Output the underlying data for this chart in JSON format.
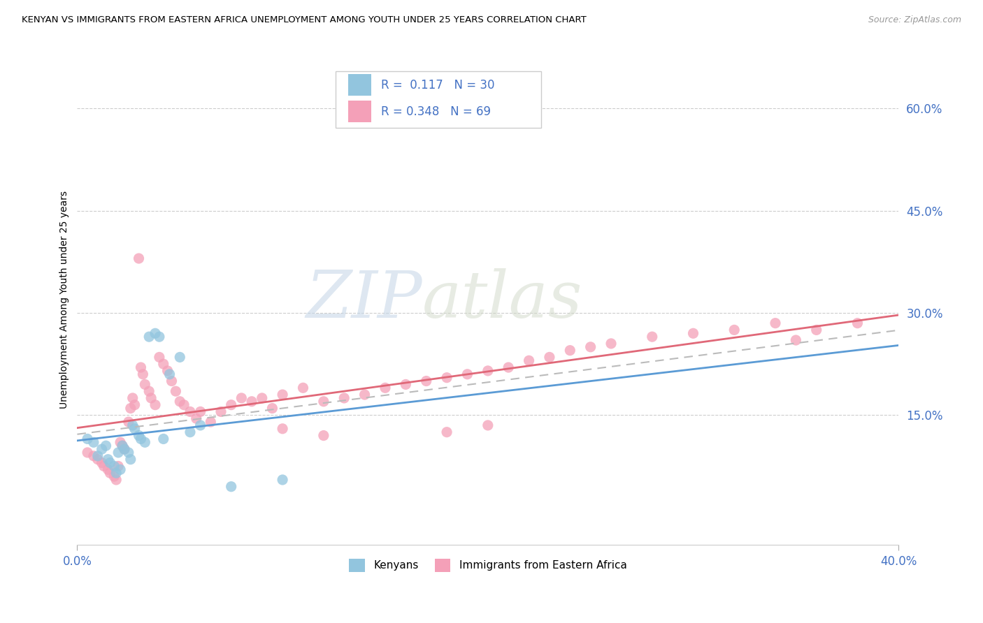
{
  "title": "KENYAN VS IMMIGRANTS FROM EASTERN AFRICA UNEMPLOYMENT AMONG YOUTH UNDER 25 YEARS CORRELATION CHART",
  "source": "Source: ZipAtlas.com",
  "ylabel": "Unemployment Among Youth under 25 years",
  "ytick_values": [
    0.15,
    0.3,
    0.45,
    0.6
  ],
  "ytick_labels": [
    "15.0%",
    "30.0%",
    "45.0%",
    "60.0%"
  ],
  "xrange": [
    0.0,
    0.4
  ],
  "yrange": [
    -0.04,
    0.68
  ],
  "legend_kenyans": "Kenyans",
  "legend_immigrants": "Immigrants from Eastern Africa",
  "R_kenyans": 0.117,
  "N_kenyans": 30,
  "R_immigrants": 0.348,
  "N_immigrants": 69,
  "color_kenyans": "#92C5DE",
  "color_immigrants": "#F4A0B8",
  "color_trendline_kenyans": "#5B9BD5",
  "color_trendline_immigrants": "#E06878",
  "color_trendline_gray": "#BBBBBB",
  "watermark_zip": "ZIP",
  "watermark_atlas": "atlas",
  "kenyans_x": [
    0.005,
    0.008,
    0.01,
    0.012,
    0.014,
    0.015,
    0.016,
    0.018,
    0.019,
    0.02,
    0.021,
    0.022,
    0.023,
    0.025,
    0.026,
    0.027,
    0.028,
    0.03,
    0.031,
    0.033,
    0.035,
    0.038,
    0.04,
    0.042,
    0.045,
    0.05,
    0.055,
    0.06,
    0.075,
    0.1
  ],
  "kenyans_y": [
    0.115,
    0.11,
    0.09,
    0.1,
    0.105,
    0.085,
    0.08,
    0.075,
    0.065,
    0.095,
    0.07,
    0.105,
    0.1,
    0.095,
    0.085,
    0.135,
    0.13,
    0.12,
    0.115,
    0.11,
    0.265,
    0.27,
    0.265,
    0.115,
    0.21,
    0.235,
    0.125,
    0.135,
    0.045,
    0.055
  ],
  "immigrants_x": [
    0.005,
    0.008,
    0.01,
    0.012,
    0.013,
    0.015,
    0.016,
    0.018,
    0.019,
    0.02,
    0.021,
    0.022,
    0.023,
    0.025,
    0.026,
    0.027,
    0.028,
    0.03,
    0.031,
    0.032,
    0.033,
    0.035,
    0.036,
    0.038,
    0.04,
    0.042,
    0.044,
    0.046,
    0.048,
    0.05,
    0.052,
    0.055,
    0.058,
    0.06,
    0.065,
    0.07,
    0.075,
    0.08,
    0.085,
    0.09,
    0.095,
    0.1,
    0.11,
    0.12,
    0.13,
    0.14,
    0.15,
    0.16,
    0.17,
    0.18,
    0.19,
    0.2,
    0.21,
    0.22,
    0.23,
    0.24,
    0.25,
    0.26,
    0.28,
    0.3,
    0.32,
    0.34,
    0.35,
    0.36,
    0.38,
    0.1,
    0.12,
    0.18,
    0.2
  ],
  "immigrants_y": [
    0.095,
    0.09,
    0.085,
    0.08,
    0.075,
    0.07,
    0.065,
    0.06,
    0.055,
    0.075,
    0.11,
    0.105,
    0.1,
    0.14,
    0.16,
    0.175,
    0.165,
    0.38,
    0.22,
    0.21,
    0.195,
    0.185,
    0.175,
    0.165,
    0.235,
    0.225,
    0.215,
    0.2,
    0.185,
    0.17,
    0.165,
    0.155,
    0.145,
    0.155,
    0.14,
    0.155,
    0.165,
    0.175,
    0.17,
    0.175,
    0.16,
    0.18,
    0.19,
    0.17,
    0.175,
    0.18,
    0.19,
    0.195,
    0.2,
    0.205,
    0.21,
    0.215,
    0.22,
    0.23,
    0.235,
    0.245,
    0.25,
    0.255,
    0.265,
    0.27,
    0.275,
    0.285,
    0.26,
    0.275,
    0.285,
    0.13,
    0.12,
    0.125,
    0.135
  ]
}
